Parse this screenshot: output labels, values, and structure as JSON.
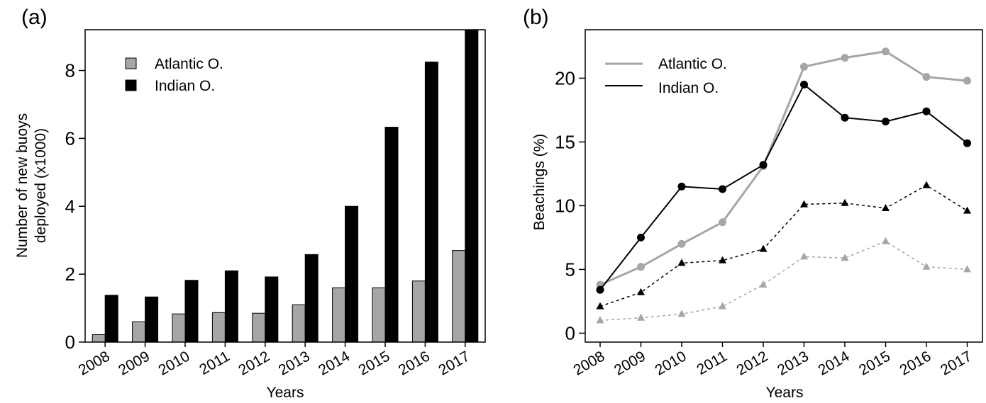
{
  "chart_data": [
    {
      "panel": "(a)",
      "type": "bar",
      "xlabel": "Years",
      "ylabel_lines": [
        "Number of new buoys",
        "deployed (x1000)"
      ],
      "categories": [
        "2008",
        "2009",
        "2010",
        "2011",
        "2012",
        "2013",
        "2014",
        "2015",
        "2016",
        "2017"
      ],
      "ylim": [
        0,
        9.2
      ],
      "yticks": [
        0,
        2,
        4,
        6,
        8
      ],
      "grid": false,
      "legend_position": "top-left",
      "series": [
        {
          "name": "Atlantic O.",
          "color": "#a6a6a6",
          "values": [
            0.22,
            0.6,
            0.83,
            0.87,
            0.85,
            1.1,
            1.6,
            1.6,
            1.8,
            2.7
          ]
        },
        {
          "name": "Indian O.",
          "color": "#000000",
          "values": [
            1.38,
            1.33,
            1.82,
            2.1,
            1.92,
            2.58,
            4.0,
            6.33,
            8.25,
            9.2
          ]
        }
      ]
    },
    {
      "panel": "(b)",
      "type": "line",
      "xlabel": "Years",
      "ylabel": "Beachings (%)",
      "categories": [
        "2008",
        "2009",
        "2010",
        "2011",
        "2012",
        "2013",
        "2014",
        "2015",
        "2016",
        "2017"
      ],
      "ylim": [
        -0.7,
        23.8
      ],
      "yticks": [
        0,
        5,
        10,
        15,
        20
      ],
      "grid": false,
      "legend_position": "top-left",
      "series": [
        {
          "name": "Atlantic O.",
          "color": "#a6a6a6",
          "marker": "circle",
          "dash": "solid",
          "legend": true,
          "values": [
            3.8,
            5.2,
            7.0,
            8.7,
            13.1,
            20.9,
            21.6,
            22.1,
            20.1,
            19.8
          ]
        },
        {
          "name": "Indian O.",
          "color": "#000000",
          "marker": "circle",
          "dash": "solid",
          "legend": true,
          "values": [
            3.4,
            7.5,
            11.5,
            11.3,
            13.2,
            19.5,
            16.9,
            16.6,
            17.4,
            14.9
          ]
        },
        {
          "name": "",
          "color": "#a6a6a6",
          "marker": "triangle",
          "dash": "dashed",
          "legend": false,
          "values": [
            1.0,
            1.2,
            1.5,
            2.1,
            3.8,
            6.0,
            5.9,
            7.2,
            5.2,
            5.0
          ]
        },
        {
          "name": "",
          "color": "#000000",
          "marker": "triangle",
          "dash": "dashed",
          "legend": false,
          "values": [
            2.1,
            3.2,
            5.5,
            5.7,
            6.6,
            10.1,
            10.2,
            9.8,
            11.6,
            9.6
          ]
        }
      ]
    }
  ]
}
